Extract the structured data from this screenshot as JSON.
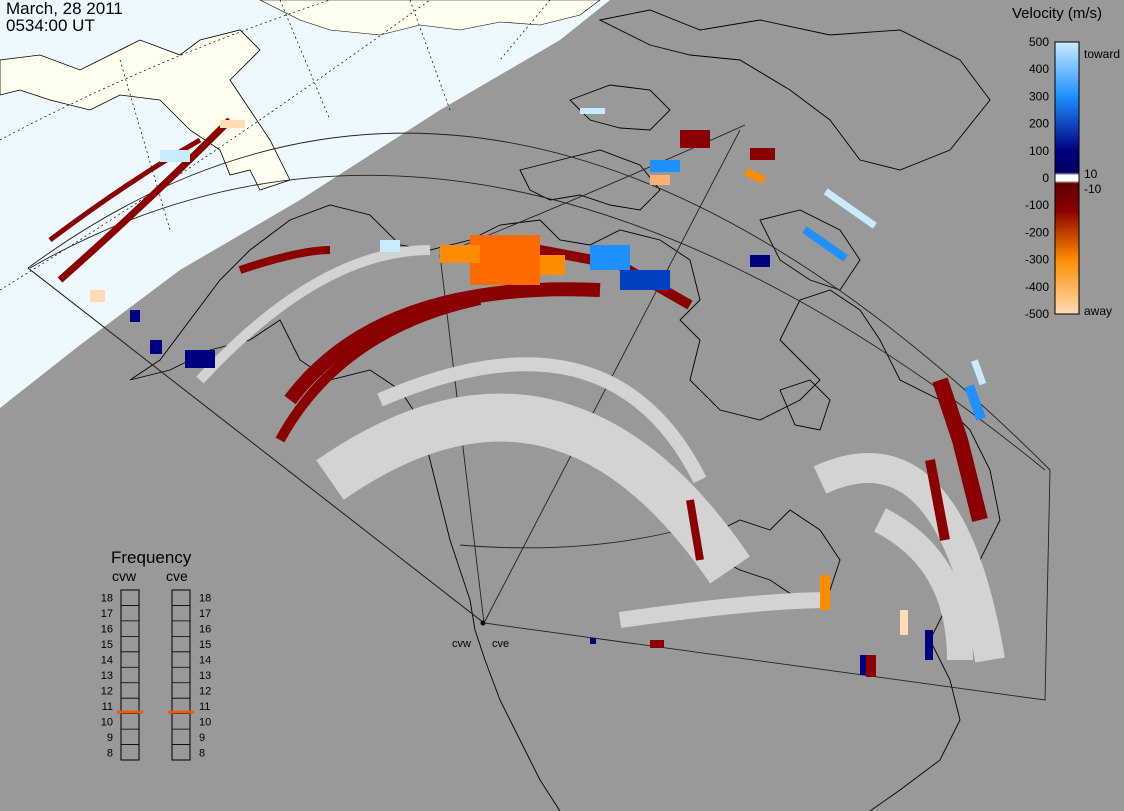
{
  "header": {
    "date": "March, 28 2011",
    "time": "0534:00 UT"
  },
  "velocity_legend": {
    "title": "Velocity (m/s)",
    "ticks": [
      "500",
      "400",
      "300",
      "200",
      "100",
      "0",
      "-100",
      "-200",
      "-300",
      "-400",
      "-500"
    ],
    "toward_label": "toward",
    "away_label": "away",
    "plus_label": "10",
    "minus_label": "-10",
    "colors": {
      "toward_light": "#c8ecff",
      "toward_mid": "#1e90ff",
      "toward_dark": "#000080",
      "away_dark": "#8b0000",
      "away_mid": "#ff8c00",
      "away_light": "#ffdcb4",
      "ground": "#d3d3d3"
    }
  },
  "frequency_legend": {
    "title": "Frequency",
    "left_radar": "cvw",
    "right_radar": "cve",
    "labels": [
      "18",
      "17",
      "16",
      "15",
      "14",
      "13",
      "12",
      "11",
      "10",
      "9",
      "8"
    ],
    "left_value": 10.6,
    "right_value": 10.6,
    "marker_color": "#e85a10"
  },
  "radars": {
    "west": "cvw",
    "east": "cve"
  },
  "map_colors": {
    "ocean": "#999999",
    "daylight_land": "#fffff0",
    "daylight_sea": "#eef8ff",
    "coastline": "#000000"
  }
}
